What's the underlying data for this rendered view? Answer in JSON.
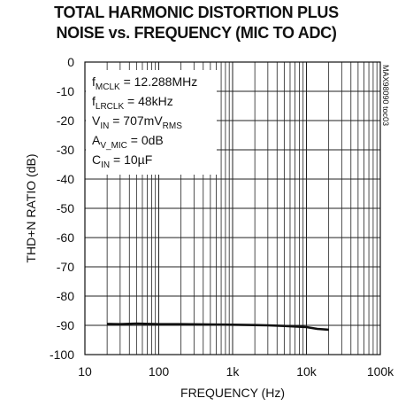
{
  "chart_data": {
    "type": "line",
    "title_lines": [
      "TOTAL HARMONIC DISTORTION PLUS",
      "NOISE vs. FREQUENCY (MIC TO ADC)"
    ],
    "xlabel": "FREQUENCY (Hz)",
    "ylabel": "THD+N RATIO (dB)",
    "x_scale": "log",
    "xlim": [
      10,
      100000
    ],
    "ylim": [
      -100,
      0
    ],
    "x_ticks": [
      "10",
      "100",
      "1k",
      "10k",
      "100k"
    ],
    "y_ticks": [
      "0",
      "-10",
      "-20",
      "-30",
      "-40",
      "-50",
      "-60",
      "-70",
      "-80",
      "-90",
      "-100"
    ],
    "grid": true,
    "conditions": [
      {
        "main": "f",
        "sub": "MCLK",
        "rest": " = 12.288MHz"
      },
      {
        "main": "f",
        "sub": "LRCLK",
        "rest": " = 48kHz"
      },
      {
        "main": "V",
        "sub": "IN",
        "rest": " = 707mV",
        "sub2": "RMS"
      },
      {
        "main": "A",
        "sub": "V_MIC",
        "rest": " = 0dB"
      },
      {
        "main": "C",
        "sub": "IN",
        "rest": " = 10µF"
      }
    ],
    "figure_code": "MAX98090 toc03",
    "series": [
      {
        "color": "#111111",
        "x": [
          20,
          30,
          50,
          100,
          200,
          500,
          1000,
          2000,
          3000,
          5000,
          7000,
          10000,
          14000,
          20000
        ],
        "y": [
          -89.5,
          -89.6,
          -89.4,
          -89.6,
          -89.6,
          -89.7,
          -89.8,
          -89.9,
          -90.0,
          -90.2,
          -90.4,
          -90.6,
          -91.2,
          -91.5
        ]
      }
    ]
  }
}
